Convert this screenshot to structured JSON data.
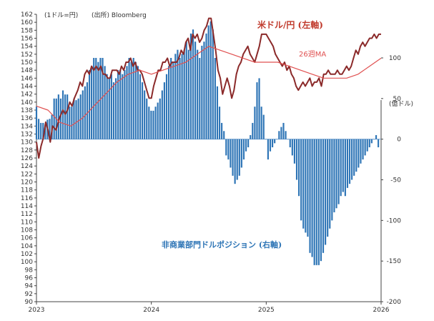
{
  "chart_data": {
    "type": "bar+line",
    "annotations": {
      "left_unit": "(1ドル=円)",
      "source": "(出所) Bloomberg",
      "right_unit": "(億ドル)"
    },
    "left_axis": {
      "range": [
        90,
        162
      ],
      "ticks": [
        162,
        160,
        158,
        156,
        154,
        152,
        150,
        148,
        146,
        144,
        142,
        140,
        138,
        136,
        134,
        132,
        130,
        128,
        126,
        124,
        122,
        120,
        118,
        116,
        114,
        112,
        110,
        108,
        106,
        104,
        102,
        100,
        98,
        96,
        94,
        92,
        90
      ]
    },
    "right_axis": {
      "range": [
        -200,
        150
      ],
      "ticks": [
        100,
        50,
        0,
        -50,
        -100,
        -150,
        -200
      ]
    },
    "x_axis": {
      "start": 2023.0,
      "end": 2026.0,
      "tick_labels": [
        "2023",
        "2024",
        "2025",
        "2026"
      ]
    },
    "series": [
      {
        "name": "米ドル/円 (左軸)",
        "kind": "line",
        "axis": "left",
        "color": "#8b2a2a",
        "points": [
          [
            2023.0,
            130
          ],
          [
            2023.02,
            126
          ],
          [
            2023.04,
            129
          ],
          [
            2023.06,
            131
          ],
          [
            2023.08,
            135
          ],
          [
            2023.1,
            133
          ],
          [
            2023.12,
            130
          ],
          [
            2023.14,
            134
          ],
          [
            2023.17,
            133
          ],
          [
            2023.2,
            136
          ],
          [
            2023.23,
            138
          ],
          [
            2023.25,
            137
          ],
          [
            2023.27,
            138
          ],
          [
            2023.29,
            140
          ],
          [
            2023.31,
            139
          ],
          [
            2023.33,
            141
          ],
          [
            2023.36,
            143
          ],
          [
            2023.38,
            145
          ],
          [
            2023.4,
            144
          ],
          [
            2023.42,
            147
          ],
          [
            2023.44,
            148
          ],
          [
            2023.46,
            147
          ],
          [
            2023.48,
            149
          ],
          [
            2023.5,
            148
          ],
          [
            2023.52,
            149
          ],
          [
            2023.54,
            148
          ],
          [
            2023.56,
            149
          ],
          [
            2023.58,
            147
          ],
          [
            2023.6,
            147
          ],
          [
            2023.62,
            146
          ],
          [
            2023.64,
            146
          ],
          [
            2023.66,
            148
          ],
          [
            2023.68,
            148
          ],
          [
            2023.7,
            148
          ],
          [
            2023.72,
            147
          ],
          [
            2023.74,
            149
          ],
          [
            2023.76,
            148
          ],
          [
            2023.78,
            150
          ],
          [
            2023.8,
            150
          ],
          [
            2023.82,
            151
          ],
          [
            2023.84,
            149
          ],
          [
            2023.86,
            150
          ],
          [
            2023.88,
            148
          ],
          [
            2023.9,
            148
          ],
          [
            2023.92,
            147
          ],
          [
            2023.94,
            145
          ],
          [
            2023.96,
            143
          ],
          [
            2023.98,
            141
          ],
          [
            2024.0,
            141
          ],
          [
            2024.02,
            144
          ],
          [
            2024.04,
            146
          ],
          [
            2024.06,
            148
          ],
          [
            2024.08,
            148
          ],
          [
            2024.1,
            150
          ],
          [
            2024.12,
            150
          ],
          [
            2024.14,
            151
          ],
          [
            2024.16,
            149
          ],
          [
            2024.18,
            150
          ],
          [
            2024.2,
            150
          ],
          [
            2024.22,
            150
          ],
          [
            2024.24,
            151
          ],
          [
            2024.26,
            153
          ],
          [
            2024.28,
            152
          ],
          [
            2024.3,
            155
          ],
          [
            2024.32,
            156
          ],
          [
            2024.34,
            153
          ],
          [
            2024.36,
            157
          ],
          [
            2024.38,
            156
          ],
          [
            2024.4,
            157
          ],
          [
            2024.42,
            155
          ],
          [
            2024.44,
            156
          ],
          [
            2024.46,
            158
          ],
          [
            2024.48,
            159
          ],
          [
            2024.5,
            161
          ],
          [
            2024.52,
            161
          ],
          [
            2024.54,
            157
          ],
          [
            2024.56,
            153
          ],
          [
            2024.58,
            148
          ],
          [
            2024.6,
            146
          ],
          [
            2024.62,
            142
          ],
          [
            2024.64,
            144
          ],
          [
            2024.66,
            146
          ],
          [
            2024.68,
            144
          ],
          [
            2024.7,
            141
          ],
          [
            2024.72,
            143
          ],
          [
            2024.74,
            147
          ],
          [
            2024.76,
            149
          ],
          [
            2024.78,
            150
          ],
          [
            2024.8,
            152
          ],
          [
            2024.82,
            153
          ],
          [
            2024.84,
            154
          ],
          [
            2024.86,
            152
          ],
          [
            2024.88,
            151
          ],
          [
            2024.9,
            150
          ],
          [
            2024.92,
            152
          ],
          [
            2024.94,
            154
          ],
          [
            2024.96,
            157
          ],
          [
            2024.98,
            157
          ],
          [
            2025.0,
            157
          ],
          [
            2025.02,
            156
          ],
          [
            2025.04,
            155
          ],
          [
            2025.06,
            154
          ],
          [
            2025.08,
            152
          ],
          [
            2025.1,
            151
          ],
          [
            2025.12,
            150
          ],
          [
            2025.14,
            149
          ],
          [
            2025.16,
            150
          ],
          [
            2025.18,
            148
          ],
          [
            2025.2,
            149
          ],
          [
            2025.22,
            147
          ],
          [
            2025.24,
            146
          ],
          [
            2025.26,
            144
          ],
          [
            2025.28,
            143
          ],
          [
            2025.3,
            144
          ],
          [
            2025.32,
            145
          ],
          [
            2025.34,
            144
          ],
          [
            2025.36,
            145
          ],
          [
            2025.38,
            146
          ],
          [
            2025.4,
            144
          ],
          [
            2025.42,
            145
          ],
          [
            2025.44,
            145
          ],
          [
            2025.46,
            146
          ],
          [
            2025.48,
            144
          ],
          [
            2025.5,
            147
          ],
          [
            2025.52,
            147
          ],
          [
            2025.54,
            148
          ],
          [
            2025.56,
            147
          ],
          [
            2025.58,
            147
          ],
          [
            2025.6,
            147
          ],
          [
            2025.62,
            148
          ],
          [
            2025.64,
            147
          ],
          [
            2025.66,
            147
          ],
          [
            2025.68,
            148
          ],
          [
            2025.7,
            149
          ],
          [
            2025.72,
            148
          ],
          [
            2025.74,
            149
          ],
          [
            2025.76,
            151
          ],
          [
            2025.78,
            153
          ],
          [
            2025.8,
            152
          ],
          [
            2025.82,
            154
          ],
          [
            2025.84,
            155
          ],
          [
            2025.86,
            154
          ],
          [
            2025.88,
            155
          ],
          [
            2025.9,
            156
          ],
          [
            2025.92,
            156
          ],
          [
            2025.94,
            157
          ],
          [
            2025.96,
            156
          ],
          [
            2025.98,
            157
          ],
          [
            2026.0,
            157
          ]
        ]
      },
      {
        "name": "26週MA",
        "kind": "line",
        "axis": "left",
        "color": "#e05050",
        "points": [
          [
            2023.0,
            139
          ],
          [
            2023.1,
            138
          ],
          [
            2023.2,
            135
          ],
          [
            2023.3,
            134
          ],
          [
            2023.4,
            136
          ],
          [
            2023.5,
            139
          ],
          [
            2023.6,
            142
          ],
          [
            2023.7,
            145
          ],
          [
            2023.8,
            147
          ],
          [
            2023.9,
            148
          ],
          [
            2024.0,
            147
          ],
          [
            2024.1,
            148
          ],
          [
            2024.2,
            149
          ],
          [
            2024.3,
            150
          ],
          [
            2024.4,
            152
          ],
          [
            2024.5,
            154
          ],
          [
            2024.6,
            153
          ],
          [
            2024.7,
            152
          ],
          [
            2024.8,
            151
          ],
          [
            2024.9,
            150
          ],
          [
            2025.0,
            150
          ],
          [
            2025.1,
            150
          ],
          [
            2025.2,
            149
          ],
          [
            2025.3,
            148
          ],
          [
            2025.4,
            147
          ],
          [
            2025.5,
            146
          ],
          [
            2025.6,
            146
          ],
          [
            2025.7,
            146
          ],
          [
            2025.8,
            147
          ],
          [
            2025.9,
            149
          ],
          [
            2026.0,
            151
          ]
        ]
      },
      {
        "name": "非商業部門ドルポジション (右軸)",
        "kind": "bar",
        "axis": "right",
        "color": "#2e75b6",
        "x_start": 2023.0,
        "x_step": 0.0192,
        "values": [
          40,
          25,
          20,
          20,
          18,
          24,
          25,
          30,
          50,
          50,
          55,
          50,
          60,
          55,
          55,
          40,
          40,
          50,
          48,
          50,
          55,
          60,
          65,
          70,
          85,
          90,
          100,
          100,
          95,
          100,
          100,
          90,
          80,
          75,
          80,
          70,
          75,
          85,
          85,
          80,
          85,
          90,
          100,
          95,
          100,
          95,
          90,
          80,
          70,
          60,
          50,
          40,
          35,
          35,
          40,
          45,
          50,
          60,
          70,
          80,
          90,
          100,
          95,
          105,
          110,
          100,
          105,
          110,
          120,
          110,
          130,
          135,
          120,
          110,
          100,
          115,
          120,
          130,
          140,
          145,
          135,
          100,
          65,
          40,
          20,
          10,
          -20,
          -25,
          -35,
          -45,
          -55,
          -50,
          -45,
          -35,
          -25,
          -15,
          -10,
          5,
          20,
          40,
          70,
          75,
          40,
          30,
          0,
          -25,
          -15,
          -10,
          -5,
          0,
          10,
          15,
          20,
          10,
          0,
          -10,
          -20,
          -30,
          -50,
          -70,
          -100,
          -110,
          -115,
          -120,
          -140,
          -145,
          -155,
          -155,
          -155,
          -150,
          -140,
          -130,
          -120,
          -110,
          -100,
          -90,
          -85,
          -80,
          -70,
          -65,
          -70,
          -60,
          -55,
          -50,
          -45,
          -40,
          -35,
          -30,
          -25,
          -20,
          -15,
          -10,
          -5,
          0,
          5,
          -10
        ]
      }
    ],
    "text_labels": {
      "usdjpy": "米ドル/円 (左軸)",
      "ma": "26週MA",
      "position": "非商業部門ドルポジション (右軸)"
    }
  }
}
